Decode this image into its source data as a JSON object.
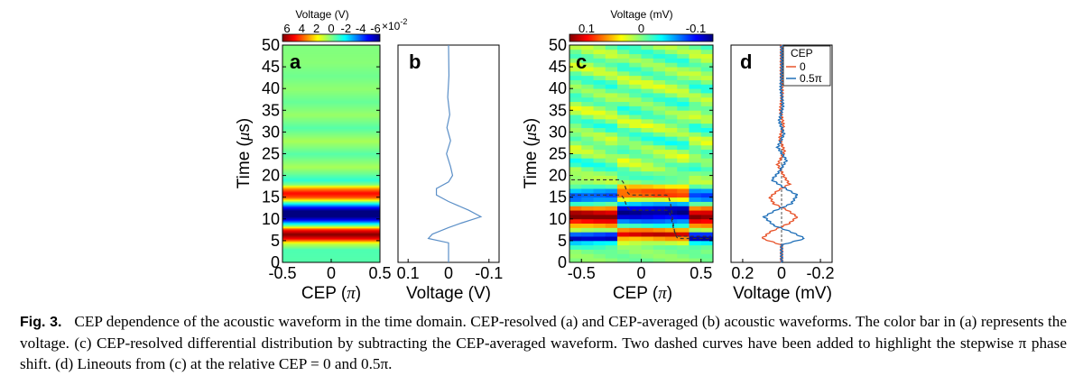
{
  "figure": {
    "panel_letters": [
      "a",
      "b",
      "c",
      "d"
    ],
    "cbar_a": {
      "title": "Voltage (V)",
      "ticks": [
        "6",
        "4",
        "2",
        "0",
        "-2",
        "-4",
        "-6"
      ],
      "mult_base": "×10",
      "mult_exp": "-2"
    },
    "cbar_c": {
      "title": "Voltage (mV)",
      "ticks": [
        "0.1",
        "0",
        "-0.1"
      ]
    },
    "time_label": {
      "main": "Time (",
      "greek": "μ",
      "unit": "s)"
    },
    "cep_label": {
      "main": "CEP (",
      "greek": "π",
      "close": ")"
    },
    "voltage_v_label": "Voltage (V)",
    "voltage_mv_label": "Voltage (mV)",
    "legend": {
      "title": "CEP",
      "entries": [
        "0",
        "0.5π"
      ],
      "colors": [
        "#e8542b",
        "#1f6fb8"
      ]
    },
    "colors": {
      "trace_b": "#5b8fc7",
      "dashed": "#333333"
    }
  },
  "chart_data": [
    {
      "panel": "a",
      "type": "heatmap",
      "x_ticks": [
        "-0.5",
        "0",
        "0.5"
      ],
      "x_range": [
        -0.5,
        0.5
      ],
      "y_ticks": [
        "0",
        "5",
        "10",
        "15",
        "20",
        "25",
        "30",
        "35",
        "40",
        "45",
        "50"
      ],
      "y_range": [
        0,
        50
      ],
      "colorbar_range": [
        0.06,
        -0.06
      ],
      "profile_t": [
        0,
        3,
        4.5,
        5.5,
        6.5,
        7.5,
        8.5,
        10,
        11,
        12,
        13,
        14,
        15,
        16,
        17,
        18,
        19,
        22,
        25,
        28,
        31,
        34,
        37,
        40,
        43,
        46,
        50
      ],
      "profile_v": [
        -0.005,
        -0.006,
        0.01,
        0.045,
        0.06,
        0.045,
        0.0,
        -0.05,
        -0.065,
        -0.06,
        -0.035,
        0.0,
        0.035,
        0.045,
        0.03,
        0.0,
        -0.01,
        0.005,
        -0.005,
        0.005,
        -0.005,
        0.003,
        -0.003,
        0.002,
        -0.002,
        0.001,
        0.0
      ]
    },
    {
      "panel": "b",
      "type": "line",
      "x_ticks": [
        "0.1",
        "0",
        "-0.1"
      ],
      "x_range": [
        0.125,
        -0.125
      ],
      "y_range": [
        0,
        50
      ],
      "voltage_v": [
        0.0,
        0.0,
        0.05,
        0.04,
        0.0,
        -0.03,
        -0.08,
        -0.05,
        0.0,
        0.03,
        0.03,
        0.0,
        -0.01,
        -0.005,
        0.005,
        -0.005,
        0.004,
        -0.003,
        0.002,
        -0.001,
        0.0
      ],
      "time_us": [
        0,
        4.5,
        5.5,
        6.5,
        8,
        9,
        10.5,
        12,
        14,
        15.5,
        17,
        18.5,
        20,
        22,
        25,
        28,
        31,
        34,
        38,
        43,
        50
      ]
    },
    {
      "panel": "c",
      "type": "heatmap",
      "x_ticks": [
        "-0.5",
        "0",
        "0.5"
      ],
      "x_range": [
        -0.6,
        0.6
      ],
      "y_ticks": [
        "0",
        "5",
        "10",
        "15",
        "20",
        "25",
        "30",
        "35",
        "40",
        "45",
        "50"
      ],
      "y_range": [
        0,
        50
      ],
      "colorbar_range": [
        0.1,
        -0.1
      ]
    },
    {
      "panel": "d",
      "type": "line",
      "x_ticks": [
        "0.2",
        "0",
        "-0.2"
      ],
      "x_range": [
        0.26,
        -0.26
      ],
      "y_range": [
        0,
        50
      ],
      "series": [
        {
          "name": "0",
          "voltage_mv": [
            0.0,
            0.0,
            0.1,
            0.06,
            -0.04,
            -0.08,
            -0.03,
            0.04,
            0.06,
            0.02,
            -0.04,
            -0.01,
            0.02,
            -0.015,
            0.01,
            -0.01,
            0.006,
            -0.004,
            0.002,
            0.0
          ],
          "time_us": [
            0,
            4,
            5.5,
            7,
            9,
            10.5,
            12,
            13.5,
            15,
            16.5,
            18,
            20,
            22.5,
            25.5,
            28.5,
            31.5,
            35,
            39,
            44,
            50
          ]
        },
        {
          "name": "0.5π",
          "voltage_mv": [
            0.0,
            0.0,
            -0.12,
            -0.05,
            0.04,
            0.09,
            0.03,
            -0.05,
            -0.08,
            -0.02,
            0.05,
            0.01,
            -0.025,
            0.02,
            -0.012,
            0.012,
            -0.007,
            0.004,
            -0.002,
            0.0
          ],
          "time_us": [
            0,
            4,
            5.5,
            7,
            8.5,
            10.5,
            12,
            13.5,
            15.5,
            17,
            19,
            21,
            23.5,
            26.5,
            29.5,
            32.5,
            36,
            40,
            45,
            50
          ]
        }
      ]
    }
  ],
  "caption": {
    "label": "Fig. 3.",
    "text": "CEP dependence of the acoustic waveform in the time domain. CEP-resolved (a) and CEP-averaged (b) acoustic waveforms. The color bar in (a) represents the voltage. (c) CEP-resolved differential distribution by subtracting the CEP-averaged waveform. Two dashed curves have been added to highlight the stepwise π phase shift. (d) Lineouts from (c) at the relative CEP = 0 and 0.5π."
  }
}
